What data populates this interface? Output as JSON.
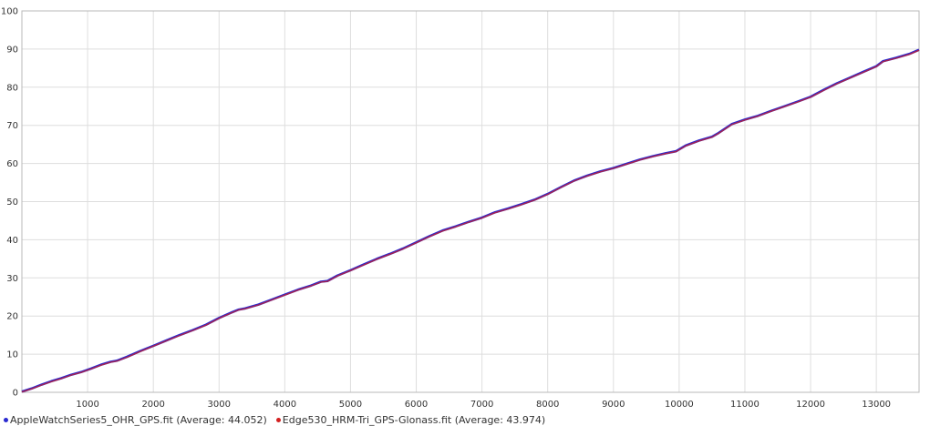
{
  "chart_data": {
    "type": "line",
    "xlim": [
      0,
      13650
    ],
    "ylim": [
      0,
      100
    ],
    "x_ticks": [
      1000,
      2000,
      3000,
      4000,
      5000,
      6000,
      7000,
      8000,
      9000,
      10000,
      11000,
      12000,
      13000
    ],
    "y_ticks": [
      0,
      10,
      20,
      30,
      40,
      50,
      60,
      70,
      80,
      90,
      100
    ],
    "grid": true,
    "legend_position": "bottom-left",
    "series": [
      {
        "name": "AppleWatchSeries5_OHR_GPS.fit (Average: 44.052)",
        "color": "#2a2ad0",
        "x": [
          0,
          150,
          300,
          450,
          600,
          750,
          900,
          1050,
          1200,
          1350,
          1450,
          1600,
          1800,
          2000,
          2200,
          2400,
          2600,
          2800,
          3000,
          3200,
          3300,
          3400,
          3600,
          3800,
          4000,
          4200,
          4400,
          4550,
          4650,
          4800,
          5000,
          5200,
          5400,
          5600,
          5800,
          6000,
          6200,
          6400,
          6600,
          6800,
          7000,
          7200,
          7400,
          7600,
          7800,
          8000,
          8200,
          8400,
          8600,
          8800,
          9000,
          9200,
          9400,
          9600,
          9800,
          9950,
          10100,
          10300,
          10500,
          10600,
          10800,
          11000,
          11200,
          11400,
          11600,
          11800,
          12000,
          12200,
          12400,
          12600,
          12800,
          13000,
          13100,
          13300,
          13500,
          13650
        ],
        "y": [
          0.2,
          1.0,
          2.0,
          2.9,
          3.7,
          4.6,
          5.3,
          6.2,
          7.2,
          8.0,
          8.3,
          9.3,
          10.8,
          12.2,
          13.6,
          15.0,
          16.3,
          17.7,
          19.5,
          21.0,
          21.7,
          22.0,
          23.0,
          24.3,
          25.6,
          26.9,
          28.0,
          29.0,
          29.2,
          30.6,
          32.0,
          33.5,
          35.0,
          36.3,
          37.7,
          39.3,
          40.9,
          42.4,
          43.5,
          44.7,
          45.8,
          47.2,
          48.2,
          49.3,
          50.5,
          52.0,
          53.8,
          55.5,
          56.8,
          57.9,
          58.8,
          59.9,
          61.0,
          61.9,
          62.7,
          63.2,
          64.7,
          66.0,
          67.0,
          68.0,
          70.3,
          71.5,
          72.5,
          73.8,
          75.0,
          76.2,
          77.5,
          79.3,
          81.0,
          82.5,
          84.0,
          85.5,
          86.8,
          87.7,
          88.7,
          89.8
        ]
      },
      {
        "name": "Edge530_HRM-Tri_GPS-Glonass.fit (Average: 43.974)",
        "color": "#d42020",
        "x": [
          0,
          150,
          300,
          450,
          600,
          750,
          900,
          1050,
          1200,
          1350,
          1450,
          1600,
          1800,
          2000,
          2200,
          2400,
          2600,
          2800,
          3000,
          3200,
          3300,
          3400,
          3600,
          3800,
          4000,
          4200,
          4400,
          4550,
          4650,
          4800,
          5000,
          5200,
          5400,
          5600,
          5800,
          6000,
          6200,
          6400,
          6600,
          6800,
          7000,
          7200,
          7400,
          7600,
          7800,
          8000,
          8200,
          8400,
          8600,
          8800,
          9000,
          9200,
          9400,
          9600,
          9800,
          9950,
          10100,
          10300,
          10500,
          10600,
          10800,
          11000,
          11200,
          11400,
          11600,
          11800,
          12000,
          12200,
          12400,
          12600,
          12800,
          13000,
          13100,
          13300,
          13500,
          13650
        ],
        "y": [
          0.1,
          0.9,
          1.9,
          2.8,
          3.6,
          4.5,
          5.2,
          6.1,
          7.1,
          7.9,
          8.2,
          9.2,
          10.7,
          12.1,
          13.5,
          14.9,
          16.2,
          17.6,
          19.4,
          20.9,
          21.6,
          21.9,
          22.9,
          24.2,
          25.5,
          26.8,
          27.9,
          28.9,
          29.1,
          30.5,
          31.9,
          33.4,
          34.9,
          36.2,
          37.6,
          39.2,
          40.8,
          42.3,
          43.4,
          44.6,
          45.7,
          47.1,
          48.1,
          49.2,
          50.4,
          51.9,
          53.7,
          55.4,
          56.7,
          57.8,
          58.7,
          59.8,
          60.9,
          61.8,
          62.6,
          63.1,
          64.6,
          65.9,
          66.9,
          67.9,
          70.2,
          71.4,
          72.4,
          73.7,
          74.9,
          76.1,
          77.4,
          79.2,
          80.9,
          82.4,
          83.9,
          85.4,
          86.7,
          87.6,
          88.6,
          89.7
        ]
      }
    ]
  }
}
